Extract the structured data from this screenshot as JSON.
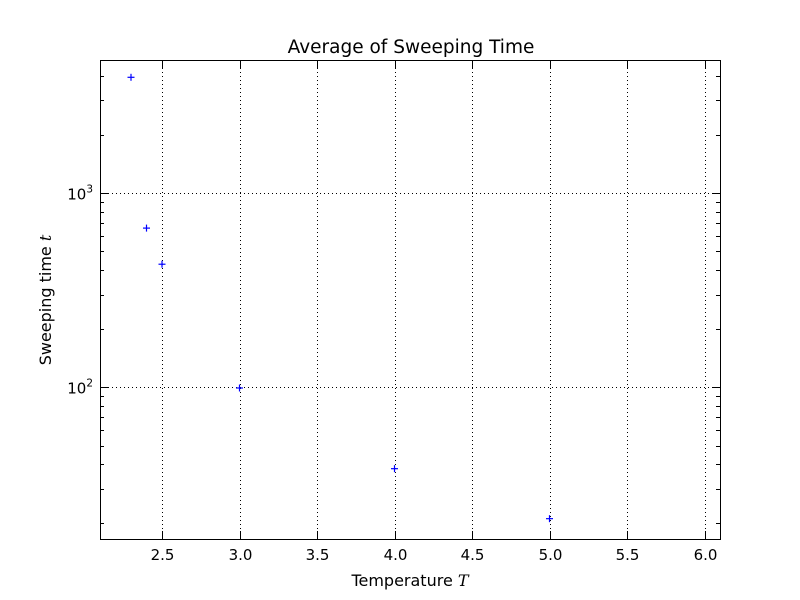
{
  "chart_data": {
    "type": "scatter",
    "title": "Average of Sweeping Time",
    "xlabel": {
      "text": "Temperature ",
      "var": "T"
    },
    "ylabel": {
      "text": "Sweeping time ",
      "var": "t"
    },
    "xlim": [
      2.1,
      6.1
    ],
    "ylim": [
      16.5,
      4850
    ],
    "yscale": "log",
    "grid": true,
    "marker": "+",
    "color": "#0000ff",
    "x_ticks": [
      2.5,
      3.0,
      3.5,
      4.0,
      4.5,
      5.0,
      5.5,
      6.0
    ],
    "x_tick_labels": [
      "2.5",
      "3.0",
      "3.5",
      "4.0",
      "4.5",
      "5.0",
      "5.5",
      "6.0"
    ],
    "y_major_ticks": [
      100,
      1000
    ],
    "y_tick_labels": [
      {
        "base": "10",
        "exp": "2"
      },
      {
        "base": "10",
        "exp": "3"
      }
    ],
    "series": [
      {
        "x": [
          2.3,
          2.4,
          2.5,
          3.0,
          4.0,
          5.0
        ],
        "y": [
          3950,
          660,
          430,
          99,
          38,
          21
        ]
      }
    ]
  }
}
